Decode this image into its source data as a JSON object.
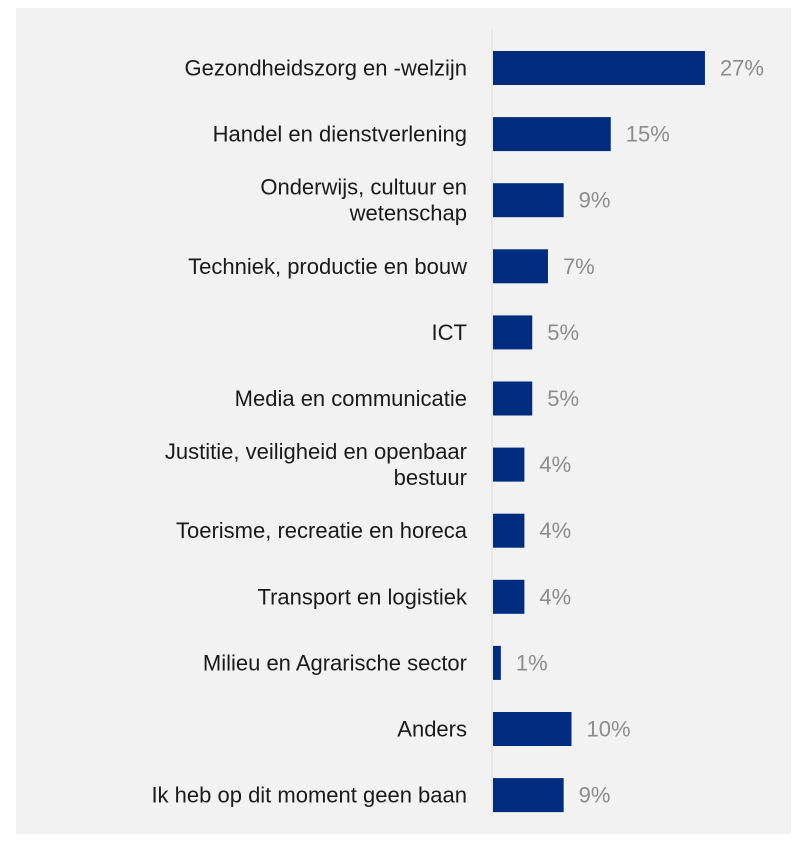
{
  "chart_data": {
    "type": "bar",
    "orientation": "horizontal",
    "categories": [
      [
        "Gezondheidszorg en -welzijn"
      ],
      [
        "Handel en dienstverlening"
      ],
      [
        "Onderwijs, cultuur en",
        "wetenschap"
      ],
      [
        "Techniek, productie en bouw"
      ],
      [
        "ICT"
      ],
      [
        "Media en communicatie"
      ],
      [
        "Justitie, veiligheid en openbaar",
        "bestuur"
      ],
      [
        "Toerisme, recreatie en horeca"
      ],
      [
        "Transport en logistiek"
      ],
      [
        "Milieu en Agrarische sector"
      ],
      [
        "Anders"
      ],
      [
        "Ik heb op dit moment geen baan"
      ]
    ],
    "values": [
      27,
      15,
      9,
      7,
      5,
      5,
      4,
      4,
      4,
      1,
      10,
      9
    ],
    "value_labels": [
      "27%",
      "15%",
      "9%",
      "7%",
      "5%",
      "5%",
      "4%",
      "4%",
      "4%",
      "1%",
      "10%",
      "9%"
    ],
    "title": "",
    "xlabel": "",
    "ylabel": "",
    "grid": false,
    "bar_color": "#002c7f",
    "value_label_color": "#8c8c8c",
    "axis_color": "#d9d9d9",
    "background_color": "#f2f2f2"
  }
}
